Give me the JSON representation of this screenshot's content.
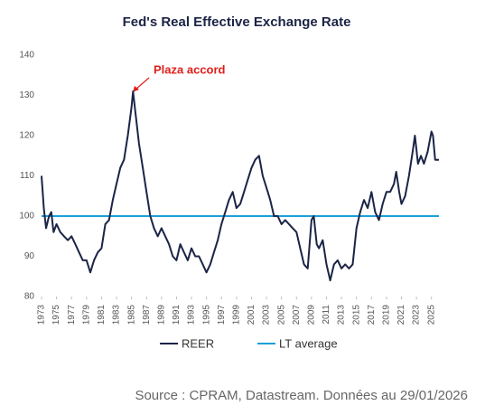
{
  "chart_data": {
    "type": "line",
    "title": "Fed's Real Effective Exchange Rate",
    "annotation": "Plaza accord",
    "source": "Source : CPRAM, Datastream. Données au 29/01/2026",
    "xlim": [
      1973,
      2026
    ],
    "xticks": [
      1973,
      1975,
      1977,
      1979,
      1981,
      1983,
      1985,
      1987,
      1989,
      1991,
      1993,
      1995,
      1997,
      1999,
      2001,
      2003,
      2005,
      2007,
      2009,
      2011,
      2013,
      2015,
      2017,
      2019,
      2021,
      2023,
      2025
    ],
    "ylim": [
      80,
      140
    ],
    "yticks": [
      80,
      90,
      100,
      110,
      120,
      130,
      140
    ],
    "x": [
      1973.0,
      1973.3,
      1973.6,
      1974.0,
      1974.3,
      1974.6,
      1975.0,
      1975.5,
      1976.0,
      1976.5,
      1977.0,
      1977.5,
      1978.0,
      1978.5,
      1979.0,
      1979.5,
      1980.0,
      1980.5,
      1981.0,
      1981.5,
      1982.0,
      1982.5,
      1983.0,
      1983.5,
      1984.0,
      1984.5,
      1985.0,
      1985.2,
      1985.5,
      1986.0,
      1986.5,
      1987.0,
      1987.5,
      1988.0,
      1988.5,
      1989.0,
      1989.5,
      1990.0,
      1990.5,
      1991.0,
      1991.5,
      1992.0,
      1992.5,
      1993.0,
      1993.5,
      1994.0,
      1994.5,
      1995.0,
      1995.5,
      1996.0,
      1996.5,
      1997.0,
      1997.5,
      1998.0,
      1998.5,
      1999.0,
      1999.5,
      2000.0,
      2000.5,
      2001.0,
      2001.5,
      2002.0,
      2002.5,
      2003.0,
      2003.5,
      2004.0,
      2004.5,
      2005.0,
      2005.5,
      2006.0,
      2006.5,
      2007.0,
      2007.5,
      2008.0,
      2008.5,
      2009.0,
      2009.3,
      2009.7,
      2010.0,
      2010.5,
      2011.0,
      2011.5,
      2012.0,
      2012.5,
      2013.0,
      2013.5,
      2014.0,
      2014.5,
      2015.0,
      2015.5,
      2016.0,
      2016.5,
      2017.0,
      2017.5,
      2018.0,
      2018.5,
      2019.0,
      2019.5,
      2020.0,
      2020.3,
      2020.7,
      2021.0,
      2021.5,
      2022.0,
      2022.5,
      2022.8,
      2023.2,
      2023.6,
      2024.0,
      2024.5,
      2025.0,
      2025.2,
      2025.5,
      2026.0
    ],
    "series": [
      {
        "name": "REER",
        "color": "#1b2446",
        "values": [
          110,
          102,
          97,
          100,
          101,
          96,
          98,
          96,
          95,
          94,
          95,
          93,
          91,
          89,
          89,
          86,
          89,
          91,
          92,
          98,
          99,
          104,
          108,
          112,
          114,
          120,
          127,
          131,
          126,
          118,
          112,
          106,
          100,
          97,
          95,
          97,
          95,
          93,
          90,
          89,
          93,
          91,
          89,
          92,
          90,
          90,
          88,
          86,
          88,
          91,
          94,
          98,
          101,
          104,
          106,
          102,
          103,
          106,
          109,
          112,
          114,
          115,
          110,
          107,
          104,
          100,
          100,
          98,
          99,
          98,
          97,
          96,
          92,
          88,
          87,
          99,
          100,
          93,
          92,
          94,
          88,
          84,
          88,
          89,
          87,
          88,
          87,
          88,
          97,
          101,
          104,
          102,
          106,
          101,
          99,
          103,
          106,
          106,
          108,
          111,
          106,
          103,
          105,
          110,
          116,
          120,
          113,
          115,
          113,
          116,
          121,
          120,
          114,
          114
        ]
      }
    ],
    "reference_line": {
      "name": "LT average",
      "value": 100,
      "color": "#1aa0d8"
    }
  }
}
